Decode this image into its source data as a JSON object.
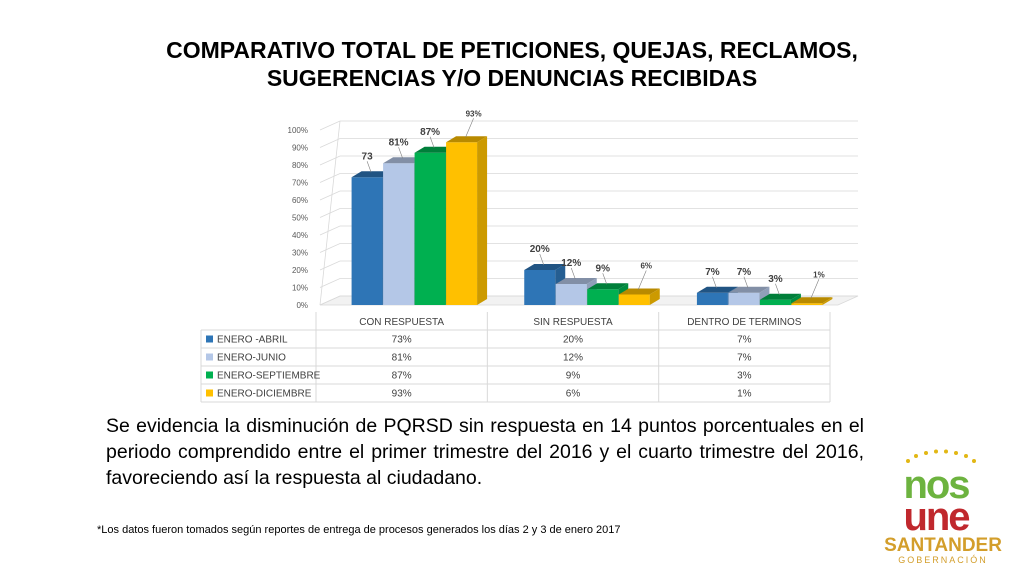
{
  "title_line1": "COMPARATIVO TOTAL DE PETICIONES, QUEJAS, RECLAMOS,",
  "title_line2": "SUGERENCIAS Y/O DENUNCIAS RECIBIDAS",
  "body_text": "Se evidencia la disminución de PQRSD sin respuesta en 14 puntos porcentuales en el periodo comprendido entre el primer trimestre del 2016 y el cuarto trimestre del 2016, favoreciendo así la respuesta al ciudadano.",
  "footnote": "*Los datos fueron tomados según reportes de entrega de procesos generados  los días  2 y 3 de enero 2017",
  "logo": {
    "top": "nos",
    "middle": "une",
    "name": "SANTANDER",
    "sub": "GOBERNACIÓN"
  },
  "chart_data": {
    "type": "bar",
    "categories": [
      "CON RESPUESTA",
      "SIN RESPUESTA",
      "DENTRO DE TERMINOS"
    ],
    "series": [
      {
        "name": "ENERO -ABRIL",
        "values": [
          73,
          20,
          7
        ],
        "labels": [
          "73",
          "20%",
          "7%"
        ],
        "table": [
          "73%",
          "20%",
          "7%"
        ],
        "color": "#2E75B6"
      },
      {
        "name": "ENERO-JUNIO",
        "values": [
          81,
          12,
          7
        ],
        "labels": [
          "81%",
          "12%",
          "7%"
        ],
        "table": [
          "81%",
          "12%",
          "7%"
        ],
        "color": "#B4C7E7"
      },
      {
        "name": "ENERO-SEPTIEMBRE",
        "values": [
          87,
          9,
          3
        ],
        "labels": [
          "87%",
          "9%",
          "3%"
        ],
        "table": [
          "87%",
          "9%",
          "3%"
        ],
        "color": "#00B050"
      },
      {
        "name": "ENERO-DICIEMBRE",
        "values": [
          93,
          6,
          1
        ],
        "labels": [
          "93%",
          "6%",
          "1%"
        ],
        "table": [
          "93%",
          "6%",
          "1%"
        ],
        "color": "#FFC000"
      }
    ],
    "yticks": [
      "0%",
      "10%",
      "20%",
      "30%",
      "40%",
      "50%",
      "60%",
      "70%",
      "80%",
      "90%",
      "100%"
    ],
    "ylim": [
      0,
      100
    ],
    "grid": true,
    "legend": "data-table",
    "title": "",
    "xlabel": "",
    "ylabel": ""
  }
}
